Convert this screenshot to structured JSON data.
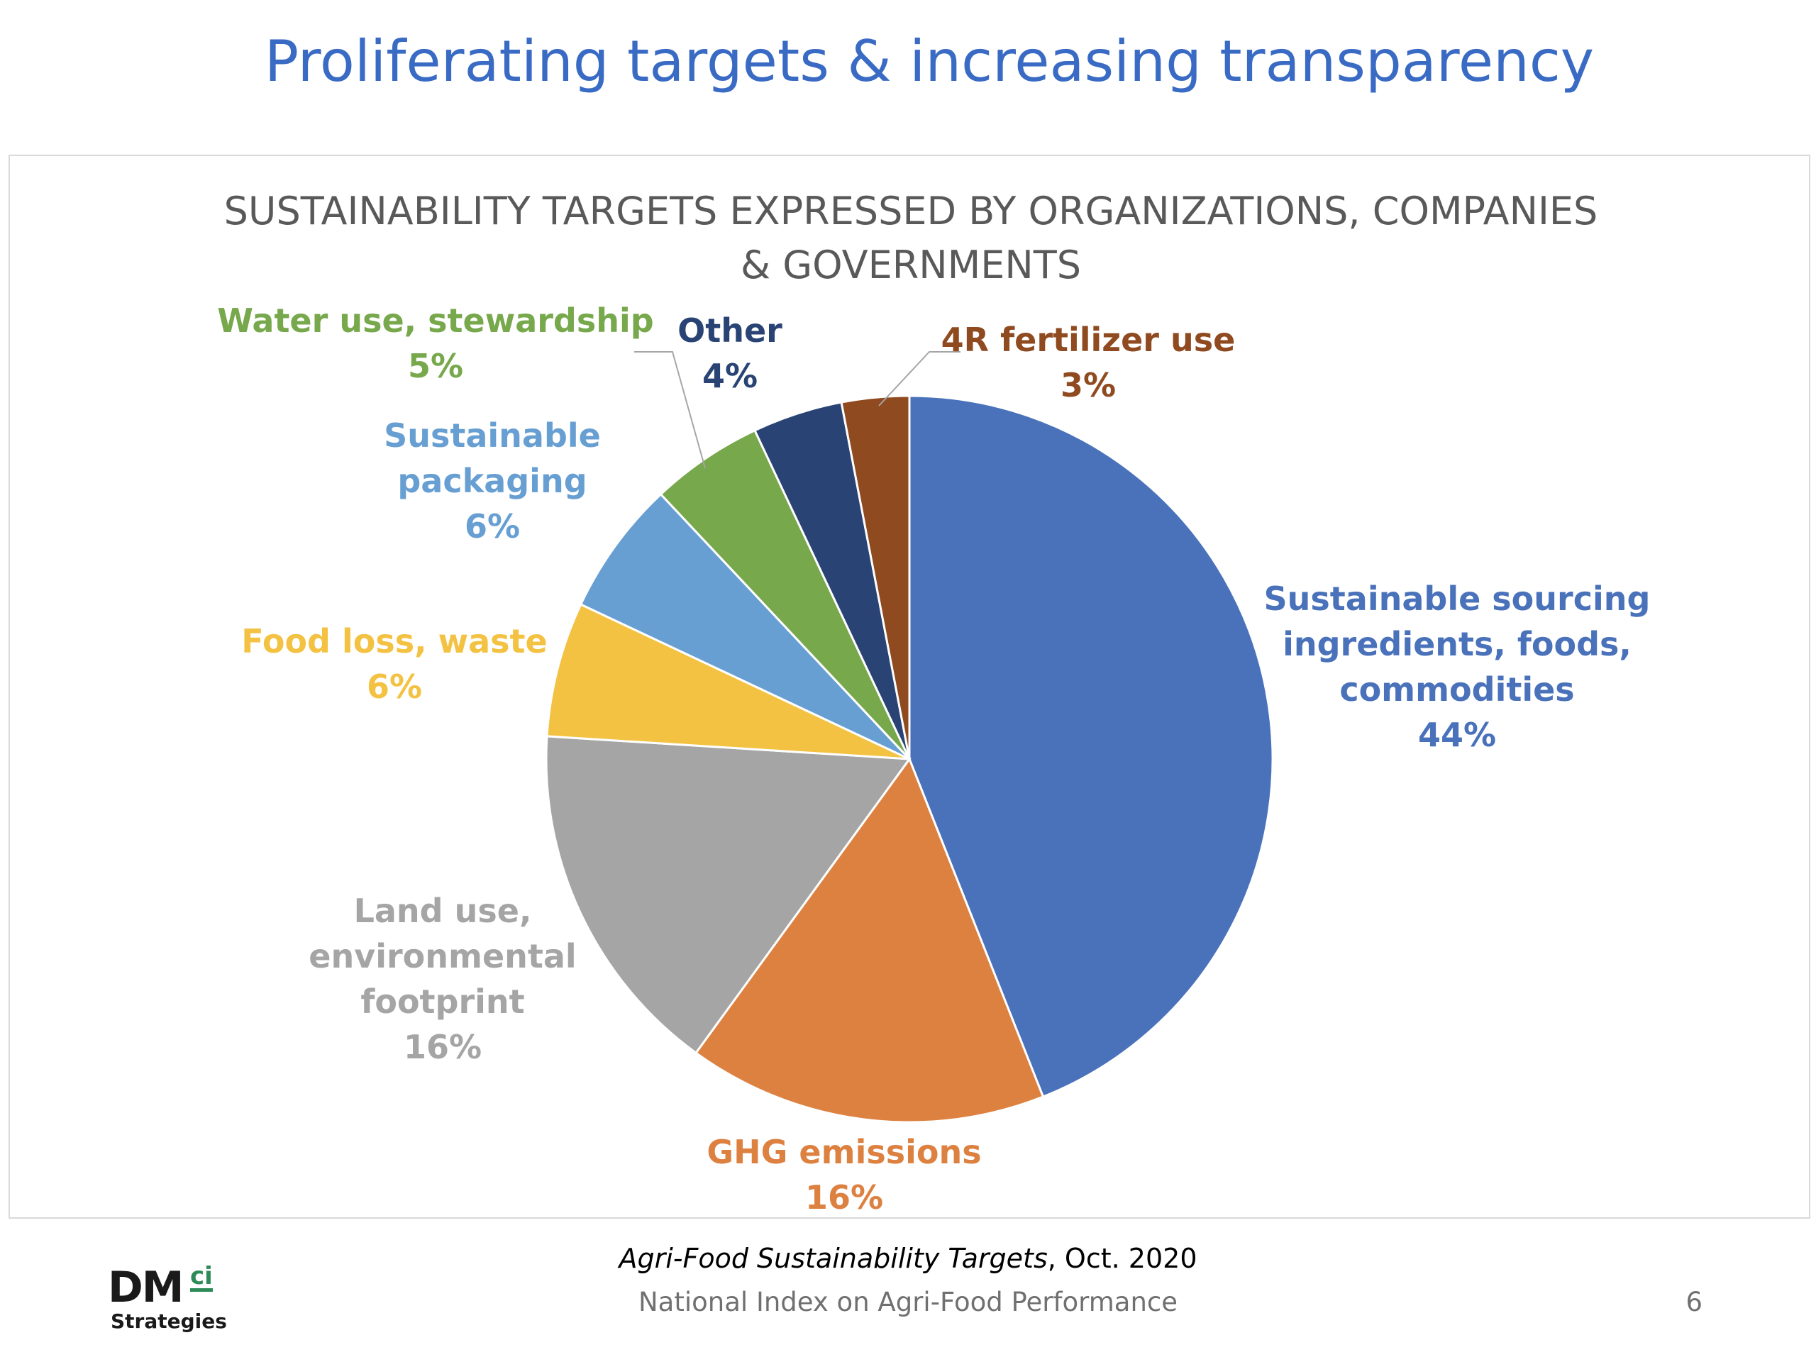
{
  "slide": {
    "title": "Proliferating targets & increasing transparency",
    "source_italic": "Agri-Food Sustainability Targets",
    "source_rest": ", Oct. 2020",
    "footer": "National Index on Agri-Food Performance",
    "page_number": "6",
    "logo": {
      "main": "DM",
      "superscript": "ci",
      "sub": "Strategies"
    }
  },
  "chart_data": {
    "type": "pie",
    "title": "SUSTAINABILITY TARGETS EXPRESSED BY ORGANIZATIONS, COMPANIES & GOVERNMENTS",
    "start": "12 o'clock, clockwise",
    "slices": [
      {
        "label": "Sustainable sourcing ingredients, foods, commodities",
        "label_lines": [
          "Sustainable sourcing",
          "ingredients, foods,",
          "commodities"
        ],
        "value": 44,
        "value_label": "44%",
        "color": "#4a72bb"
      },
      {
        "label": "GHG emissions",
        "label_lines": [
          "GHG emissions"
        ],
        "value": 16,
        "value_label": "16%",
        "color": "#dd8141"
      },
      {
        "label": "Land use, environmental footprint",
        "label_lines": [
          "Land use,",
          "environmental",
          "footprint"
        ],
        "value": 16,
        "value_label": "16%",
        "color": "#a5a5a5"
      },
      {
        "label": "Food loss, waste",
        "label_lines": [
          "Food loss, waste"
        ],
        "value": 6,
        "value_label": "6%",
        "color": "#f4c242"
      },
      {
        "label": "Sustainable packaging",
        "label_lines": [
          "Sustainable",
          "packaging"
        ],
        "value": 6,
        "value_label": "6%",
        "color": "#679fd3"
      },
      {
        "label": "Water use, stewardship",
        "label_lines": [
          "Water use, stewardship"
        ],
        "value": 5,
        "value_label": "5%",
        "color": "#77a84c"
      },
      {
        "label": "Other",
        "label_lines": [
          "Other"
        ],
        "value": 4,
        "value_label": "4%",
        "color": "#294474"
      },
      {
        "label": "4R fertilizer use",
        "label_lines": [
          "4R fertilizer use"
        ],
        "value": 3,
        "value_label": "3%",
        "color": "#8f4a20"
      }
    ]
  }
}
